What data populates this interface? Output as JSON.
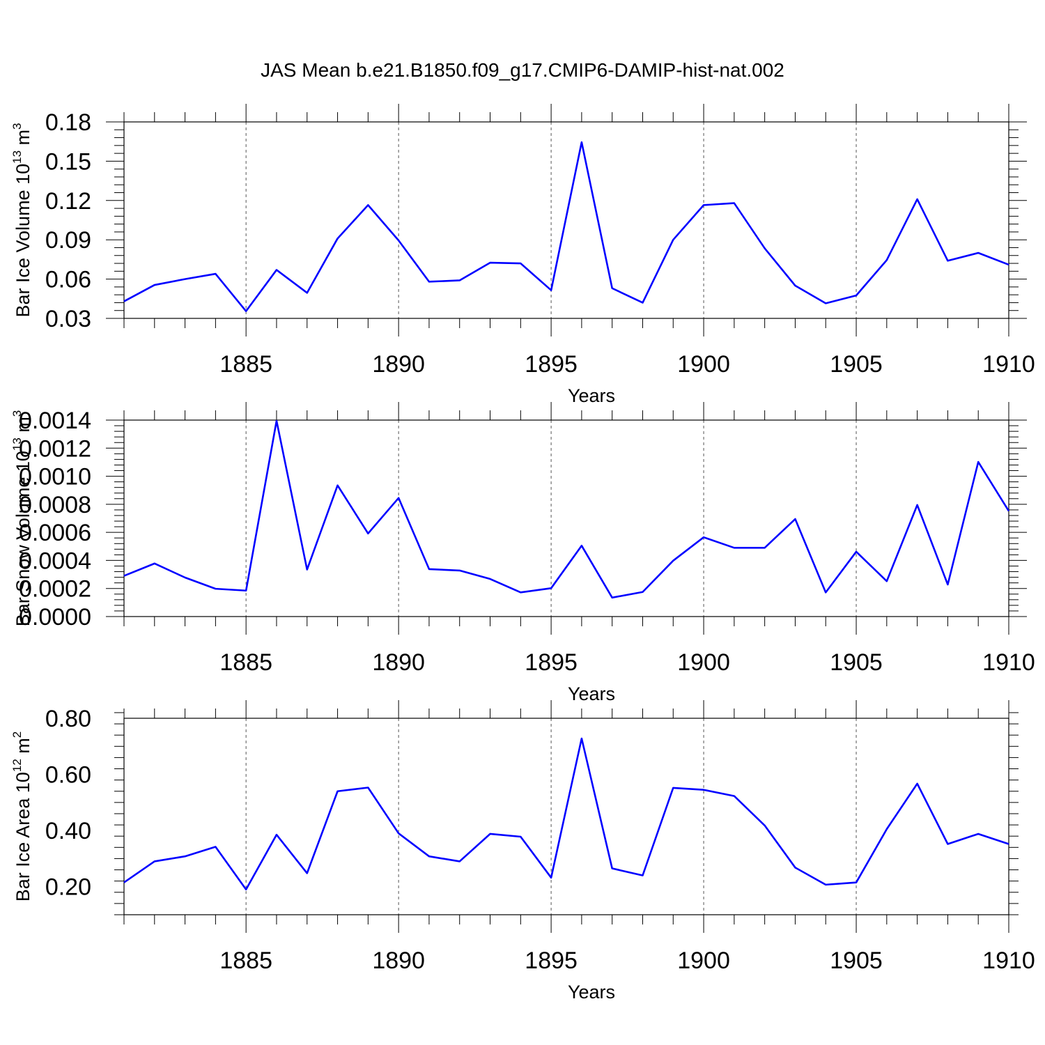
{
  "chart_data": {
    "title": "JAS Mean b.e21.B1850.f09_g17.CMIP6-DAMIP-hist-nat.002",
    "panels": [
      {
        "type": "line",
        "ylabel_main": "Bar Ice Volume 10",
        "ylabel_exp": "13",
        "ylabel_unit": " m",
        "ylabel_unit_exp": "3",
        "xlabel": "Years",
        "xlim": [
          1881,
          1910
        ],
        "ylim": [
          0.03,
          0.18
        ],
        "yticks": [
          0.03,
          0.06,
          0.09,
          0.12,
          0.15,
          0.18
        ],
        "ytick_labels": [
          "0.03",
          "0.06",
          "0.09",
          "0.12",
          "0.15",
          "0.18"
        ],
        "xticks": [
          1885,
          1890,
          1895,
          1900,
          1905,
          1910
        ],
        "xtick_labels": [
          "1885",
          "1890",
          "1895",
          "1900",
          "1905",
          "1910"
        ],
        "series": [
          {
            "name": "Bar Ice Volume",
            "color": "#0000ff",
            "x": [
              1881,
              1882,
              1883,
              1884,
              1885,
              1886,
              1887,
              1888,
              1889,
              1890,
              1891,
              1892,
              1893,
              1894,
              1895,
              1896,
              1897,
              1898,
              1899,
              1900,
              1901,
              1902,
              1903,
              1904,
              1905,
              1906,
              1907,
              1908,
              1909,
              1910
            ],
            "values": [
              0.043,
              0.0555,
              0.06,
              0.064,
              0.0355,
              0.067,
              0.0495,
              0.091,
              0.1165,
              0.0895,
              0.058,
              0.059,
              0.0725,
              0.072,
              0.0515,
              0.1645,
              0.053,
              0.042,
              0.09,
              0.1165,
              0.118,
              0.0835,
              0.055,
              0.0415,
              0.0475,
              0.0745,
              0.121,
              0.074,
              0.08,
              0.071
            ]
          }
        ]
      },
      {
        "type": "line",
        "ylabel_main": "Bar Snow Volume 10",
        "ylabel_exp": "13",
        "ylabel_unit": " m",
        "ylabel_unit_exp": "3",
        "xlabel": "Years",
        "xlim": [
          1881,
          1910
        ],
        "ylim": [
          0.0,
          0.0014
        ],
        "yticks": [
          0.0,
          0.0002,
          0.0004,
          0.0006,
          0.0008,
          0.001,
          0.0012,
          0.0014
        ],
        "ytick_labels": [
          "0.0000",
          "0.0002",
          "0.0004",
          "0.0006",
          "0.0008",
          "0.0010",
          "0.0012",
          "0.0014"
        ],
        "xticks": [
          1885,
          1890,
          1895,
          1900,
          1905,
          1910
        ],
        "xtick_labels": [
          "1885",
          "1890",
          "1895",
          "1900",
          "1905",
          "1910"
        ],
        "series": [
          {
            "name": "Bar Snow Volume",
            "color": "#0000ff",
            "x": [
              1881,
              1882,
              1883,
              1884,
              1885,
              1886,
              1887,
              1888,
              1889,
              1890,
              1891,
              1892,
              1893,
              1894,
              1895,
              1896,
              1897,
              1898,
              1899,
              1900,
              1901,
              1902,
              1903,
              1904,
              1905,
              1906,
              1907,
              1908,
              1909,
              1910
            ],
            "values": [
              0.00029,
              0.000378,
              0.000278,
              0.000198,
              0.000185,
              0.001395,
              0.000335,
              0.000935,
              0.000592,
              0.000845,
              0.000338,
              0.000328,
              0.000268,
              0.000172,
              0.000202,
              0.000505,
              0.000135,
              0.000175,
              0.000398,
              0.000565,
              0.00049,
              0.00049,
              0.000695,
              0.000172,
              0.000462,
              0.000252,
              0.000795,
              0.000228,
              0.001102,
              0.000752
            ]
          }
        ]
      },
      {
        "type": "line",
        "ylabel_main": "Bar Ice Area 10",
        "ylabel_exp": "12",
        "ylabel_unit": " m",
        "ylabel_unit_exp": "2",
        "xlabel": "Years",
        "xlim": [
          1881,
          1910
        ],
        "ylim": [
          0.1,
          0.8
        ],
        "yticks": [
          0.2,
          0.4,
          0.6,
          0.8
        ],
        "ytick_labels": [
          "0.20",
          "0.40",
          "0.60",
          "0.80"
        ],
        "xticks": [
          1885,
          1890,
          1895,
          1900,
          1905,
          1910
        ],
        "xtick_labels": [
          "1885",
          "1890",
          "1895",
          "1900",
          "1905",
          "1910"
        ],
        "series": [
          {
            "name": "Bar Ice Area",
            "color": "#0000ff",
            "x": [
              1881,
              1882,
              1883,
              1884,
              1885,
              1886,
              1887,
              1888,
              1889,
              1890,
              1891,
              1892,
              1893,
              1894,
              1895,
              1896,
              1897,
              1898,
              1899,
              1900,
              1901,
              1902,
              1903,
              1904,
              1905,
              1906,
              1907,
              1908,
              1909,
              1910
            ],
            "values": [
              0.215,
              0.29,
              0.308,
              0.342,
              0.19,
              0.385,
              0.248,
              0.54,
              0.553,
              0.39,
              0.308,
              0.29,
              0.388,
              0.378,
              0.232,
              0.728,
              0.265,
              0.24,
              0.552,
              0.545,
              0.523,
              0.418,
              0.268,
              0.207,
              0.215,
              0.405,
              0.567,
              0.352,
              0.388,
              0.352
            ]
          }
        ]
      }
    ]
  }
}
